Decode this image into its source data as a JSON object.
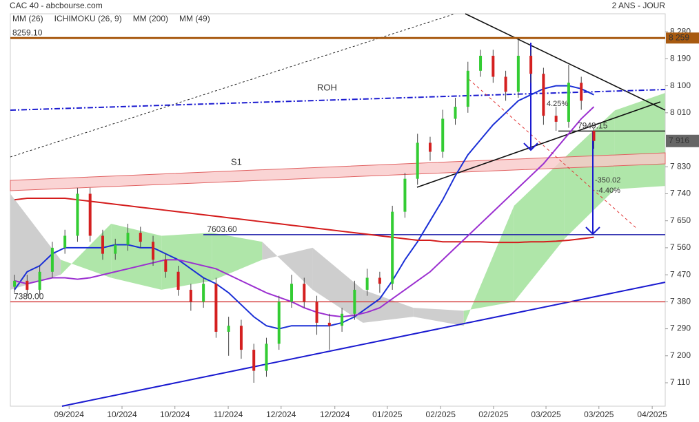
{
  "chart_data": {
    "type": "candlestick",
    "title": "CAC 40 - abcbourse.com",
    "subtitle": "2 ANS - JOUR",
    "xlim": [
      0,
      156
    ],
    "ylim": [
      7032,
      8340
    ],
    "xticks": [
      {
        "value": 14.0,
        "label": "09/2024"
      },
      {
        "value": 26.6,
        "label": "10/2024"
      },
      {
        "value": 39.2,
        "label": "10/2024"
      },
      {
        "value": 51.9,
        "label": "11/2024"
      },
      {
        "value": 64.5,
        "label": "12/2024"
      },
      {
        "value": 77.3,
        "label": "12/2024"
      },
      {
        "value": 89.8,
        "label": "01/2025"
      },
      {
        "value": 102.5,
        "label": "02/2025"
      },
      {
        "value": 115.1,
        "label": "02/2025"
      },
      {
        "value": 127.6,
        "label": "03/2025"
      },
      {
        "value": 140.2,
        "label": "03/2025"
      },
      {
        "value": 152.9,
        "label": "04/2025"
      }
    ],
    "yticks": [
      {
        "value": 8280,
        "label": "8 280"
      },
      {
        "value": 8190,
        "label": "8 190"
      },
      {
        "value": 8100,
        "label": "8 100"
      },
      {
        "value": 8010,
        "label": "8 010"
      },
      {
        "value": 7830,
        "label": "7 830"
      },
      {
        "value": 7740,
        "label": "7 740"
      },
      {
        "value": 7650,
        "label": "7 650"
      },
      {
        "value": 7560,
        "label": "7 560"
      },
      {
        "value": 7470,
        "label": "7 470"
      },
      {
        "value": 7380,
        "label": "7 380"
      },
      {
        "value": 7290,
        "label": "7 290"
      },
      {
        "value": 7200,
        "label": "7 200"
      },
      {
        "value": 7110,
        "label": "7 110"
      }
    ],
    "up_color": "#33cc33",
    "down_color": "#d42020",
    "candles": {
      "x": [
        1,
        4,
        7,
        10,
        13,
        16,
        19,
        22,
        25,
        28,
        31,
        34,
        37,
        40,
        43,
        46,
        49,
        52,
        55,
        58,
        61,
        64,
        67,
        70,
        73,
        76,
        79,
        82,
        85,
        88,
        91,
        94,
        97,
        100,
        103,
        106,
        109,
        112,
        115,
        118,
        121,
        124,
        127,
        130,
        133,
        136,
        139
      ],
      "open": [
        7430,
        7450,
        7420,
        7480,
        7560,
        7600,
        7740,
        7600,
        7540,
        7570,
        7610,
        7580,
        7520,
        7480,
        7420,
        7380,
        7440,
        7280,
        7300,
        7220,
        7150,
        7240,
        7380,
        7440,
        7380,
        7310,
        7300,
        7340,
        7420,
        7460,
        7440,
        7680,
        7790,
        7910,
        7880,
        7990,
        8030,
        8150,
        8200,
        8130,
        8080,
        8200,
        8140,
        8000,
        7980,
        8110,
        7950
      ],
      "high": [
        7470,
        7470,
        7500,
        7580,
        7620,
        7760,
        7760,
        7620,
        7590,
        7640,
        7630,
        7600,
        7540,
        7500,
        7440,
        7460,
        7460,
        7330,
        7320,
        7240,
        7260,
        7400,
        7470,
        7460,
        7400,
        7340,
        7360,
        7450,
        7490,
        7480,
        7700,
        7810,
        7940,
        7930,
        8020,
        8060,
        8180,
        8220,
        8220,
        8150,
        8260,
        8220,
        8160,
        8030,
        8170,
        8130,
        7960
      ],
      "low": [
        7410,
        7400,
        7400,
        7460,
        7540,
        7580,
        7580,
        7520,
        7520,
        7550,
        7560,
        7500,
        7460,
        7400,
        7350,
        7360,
        7260,
        7200,
        7190,
        7110,
        7130,
        7220,
        7360,
        7360,
        7270,
        7220,
        7280,
        7320,
        7400,
        7410,
        7420,
        7660,
        7770,
        7850,
        7860,
        7970,
        8010,
        8130,
        8110,
        8050,
        8060,
        8110,
        7970,
        7950,
        7960,
        8020,
        7890
      ],
      "close": [
        7450,
        7420,
        7480,
        7560,
        7600,
        7740,
        7600,
        7540,
        7570,
        7610,
        7580,
        7520,
        7480,
        7420,
        7380,
        7440,
        7280,
        7300,
        7220,
        7150,
        7240,
        7380,
        7440,
        7380,
        7310,
        7300,
        7340,
        7420,
        7460,
        7440,
        7680,
        7790,
        7910,
        7880,
        7990,
        8030,
        8150,
        8200,
        8130,
        8080,
        8200,
        8140,
        8000,
        7980,
        8110,
        8050,
        7916
      ]
    },
    "series": [
      {
        "name": "MM (26)",
        "color": "#1a2fd6",
        "values": [
          7420,
          7480,
          7500,
          7540,
          7560,
          7560,
          7560,
          7560,
          7570,
          7570,
          7560,
          7560,
          7540,
          7520,
          7490,
          7460,
          7440,
          7410,
          7370,
          7330,
          7300,
          7290,
          7300,
          7300,
          7300,
          7300,
          7310,
          7330,
          7360,
          7390,
          7450,
          7520,
          7580,
          7650,
          7720,
          7800,
          7870,
          7920,
          7970,
          8010,
          8050,
          8070,
          8090,
          8100,
          8100,
          8090,
          8070
        ]
      },
      {
        "name": "ICHIMOKU (26, 9)",
        "color": "#2060c0",
        "x": [
          0,
          12,
          24,
          36,
          48,
          60,
          72,
          84,
          96,
          108,
          120,
          132,
          144,
          156
        ],
        "span_a": [
          7420,
          7470,
          7640,
          7600,
          7610,
          7580,
          7420,
          7310,
          7330,
          7300,
          7700,
          7860,
          8018,
          8076
        ],
        "span_b": [
          7740,
          7520,
          7460,
          7420,
          7450,
          7520,
          7560,
          7420,
          7360,
          7350,
          7380,
          7590,
          7755,
          7766
        ]
      },
      {
        "name": "MM (200)",
        "color": "#d41c1c",
        "values": [
          7720,
          7725,
          7725,
          7725,
          7725,
          7720,
          7715,
          7710,
          7705,
          7700,
          7695,
          7690,
          7685,
          7680,
          7675,
          7670,
          7665,
          7660,
          7655,
          7650,
          7645,
          7640,
          7635,
          7630,
          7625,
          7620,
          7615,
          7610,
          7605,
          7600,
          7595,
          7590,
          7585,
          7585,
          7580,
          7580,
          7580,
          7580,
          7578,
          7578,
          7578,
          7580,
          7580,
          7582,
          7585,
          7590,
          7595
        ]
      },
      {
        "name": "MM (49)",
        "color": "#9b2fd0",
        "values": [
          7450,
          7440,
          7450,
          7460,
          7460,
          7455,
          7460,
          7470,
          7480,
          7490,
          7500,
          7510,
          7520,
          7520,
          7510,
          7500,
          7490,
          7470,
          7450,
          7430,
          7410,
          7395,
          7380,
          7360,
          7345,
          7335,
          7330,
          7335,
          7345,
          7360,
          7390,
          7420,
          7450,
          7480,
          7520,
          7560,
          7600,
          7640,
          7680,
          7720,
          7760,
          7800,
          7840,
          7890,
          7940,
          7990,
          8030
        ]
      }
    ],
    "levels": [
      {
        "value": 8259.1,
        "label": "8259.10",
        "tag": "8 259",
        "color": "#a85a10"
      },
      {
        "value": 7603.6,
        "label": "7603.60",
        "color": "#1a1aa8"
      },
      {
        "value": 7380,
        "label": "7380.00",
        "color": "#d44040"
      },
      {
        "value": 7949.15,
        "label": "7949.15",
        "color": "#222222"
      }
    ],
    "last_price": {
      "value": 7916,
      "label": "7 916"
    },
    "annotations": [
      "ROH",
      "S1",
      "-350.02",
      "-4.40%",
      "4.25%"
    ]
  }
}
